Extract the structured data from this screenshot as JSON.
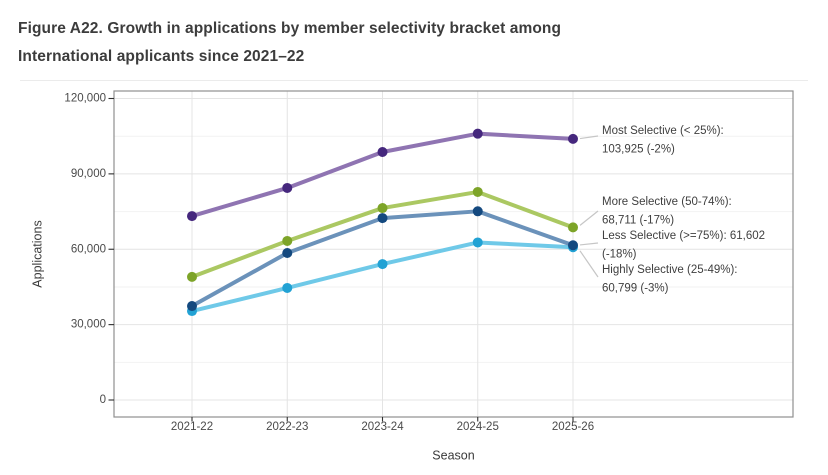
{
  "figure": {
    "title_line1": "Figure A22. Growth in applications by member selectivity bracket among",
    "title_line2": "International applicants since 2021–22"
  },
  "chart_data": {
    "type": "line",
    "title": "Figure A22. Growth in applications by member selectivity bracket among International applicants since 2021–22",
    "xlabel": "Season",
    "ylabel": "Applications",
    "categories": [
      "2021-22",
      "2022-23",
      "2023-24",
      "2024-25",
      "2025-26"
    ],
    "ylim": [
      0,
      120000
    ],
    "yticks": [
      0,
      30000,
      60000,
      90000,
      120000
    ],
    "ytick_labels": [
      "0",
      "30,000",
      "60,000",
      "90,000",
      "120,000"
    ],
    "minor_yticks": [
      15000,
      45000,
      75000,
      105000
    ],
    "grid": true,
    "legend_position": "right-inline-annotations",
    "series": [
      {
        "name": "Most Selective (< 25%)",
        "values": [
          73200,
          84400,
          98700,
          106000,
          103925
        ],
        "line_color": "#8f74b2",
        "point_color": "#45277d",
        "annotation_lines": [
          "Most Selective (< 25%):",
          "103,925 (-2%)"
        ],
        "final_value": "103,925",
        "pct_change": "-2%"
      },
      {
        "name": "More Selective (50-74%)",
        "values": [
          49000,
          63300,
          76400,
          82800,
          68711
        ],
        "line_color": "#abc862",
        "point_color": "#7da428",
        "annotation_lines": [
          "More Selective (50-74%):",
          "68,711 (-17%)"
        ],
        "final_value": "68,711",
        "pct_change": "-17%"
      },
      {
        "name": "Highly Selective (25-49%)",
        "values": [
          35400,
          44600,
          54100,
          62700,
          60799
        ],
        "line_color": "#6fc9e8",
        "point_color": "#22a2d4",
        "annotation_lines": [
          "Highly Selective (25-49%):",
          "60,799 (-3%)"
        ],
        "final_value": "60,799",
        "pct_change": "-3%"
      },
      {
        "name": "Less Selective (>=75%)",
        "values": [
          37400,
          58500,
          72400,
          75100,
          61602
        ],
        "line_color": "#6b92ba",
        "point_color": "#14497f",
        "annotation_lines": [
          "Less Selective (>=75%): 61,602",
          "(-18%)"
        ],
        "final_value": "61,602",
        "pct_change": "-18%"
      }
    ],
    "colors": {
      "title_text": "#3c3c3c",
      "axis_text": "#4a4a4a",
      "annotation_text": "#3f3f3f",
      "panel_border": "#8f8f8f",
      "major_grid": "#e4e4e4",
      "minor_grid": "#f2f2f2",
      "leader_line": "#c6c6c6"
    }
  }
}
